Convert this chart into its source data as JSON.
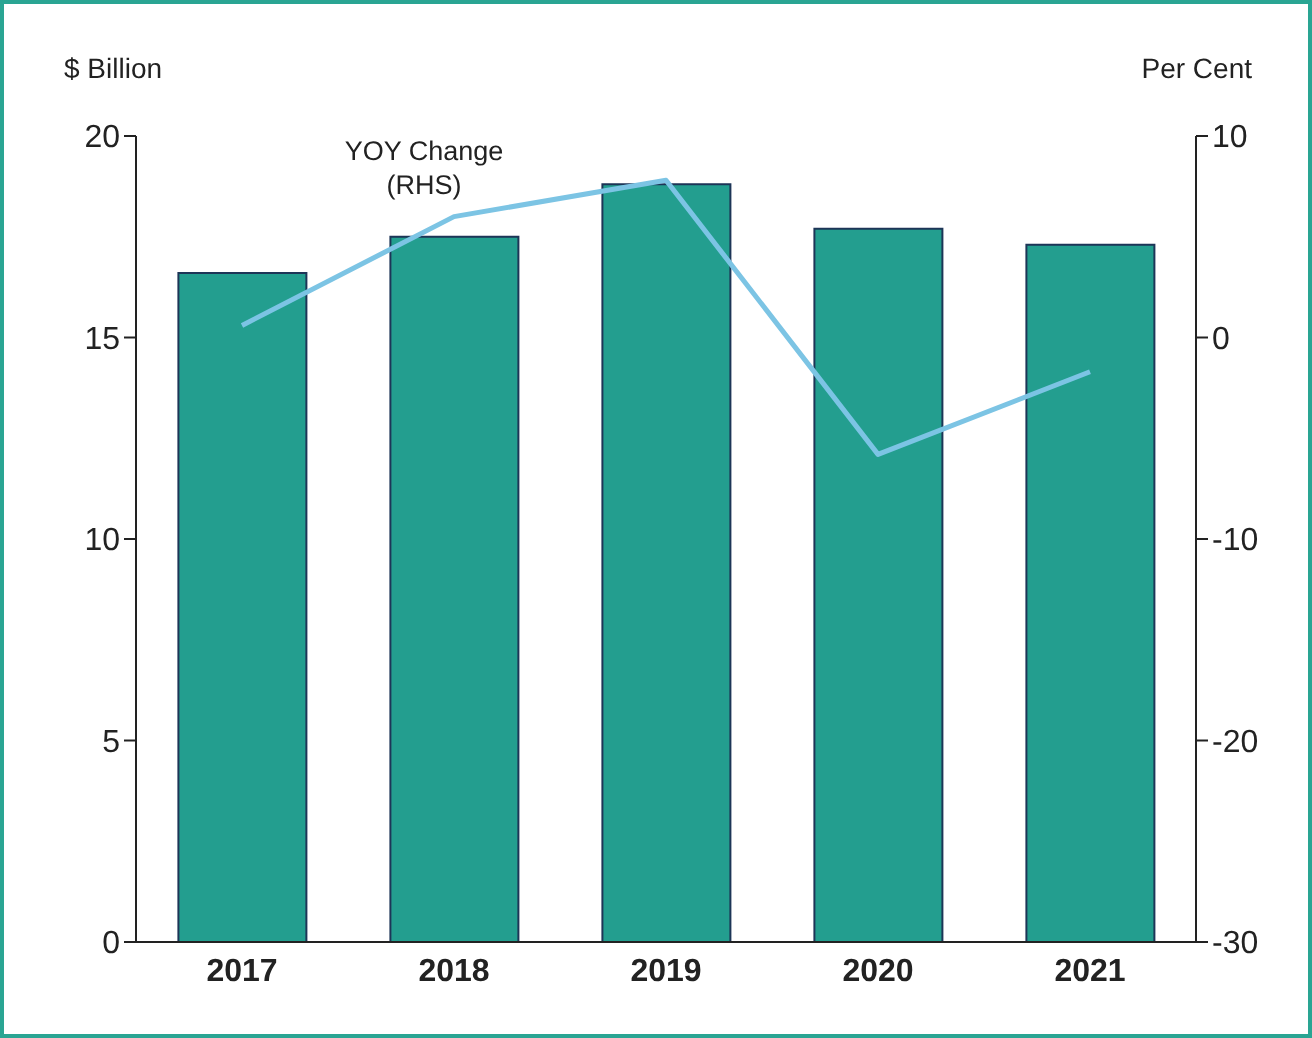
{
  "chart_data": {
    "type": "bar",
    "ylabel": "$ Billion",
    "y2label": "Per Cent",
    "annotations": [
      "YOY Change (RHS)"
    ],
    "categories": [
      "2017",
      "2018",
      "2019",
      "2020",
      "2021"
    ],
    "series": [
      {
        "color": "#239e8f",
        "values": [
          16.6,
          17.5,
          18.8,
          17.7,
          17.3
        ]
      },
      {
        "type": "line",
        "axis": "y2",
        "color": "#7cc4e4",
        "values": [
          0.6,
          6.0,
          7.8,
          -5.8,
          -1.7
        ]
      }
    ],
    "ylim": [
      0,
      20
    ],
    "yticks": [
      0,
      5,
      10,
      15,
      20
    ],
    "y2lim": [
      -30,
      10
    ],
    "y2ticks": [
      -30,
      -20,
      -10,
      0,
      10
    ],
    "marker": "none",
    "line_style": "solid"
  }
}
